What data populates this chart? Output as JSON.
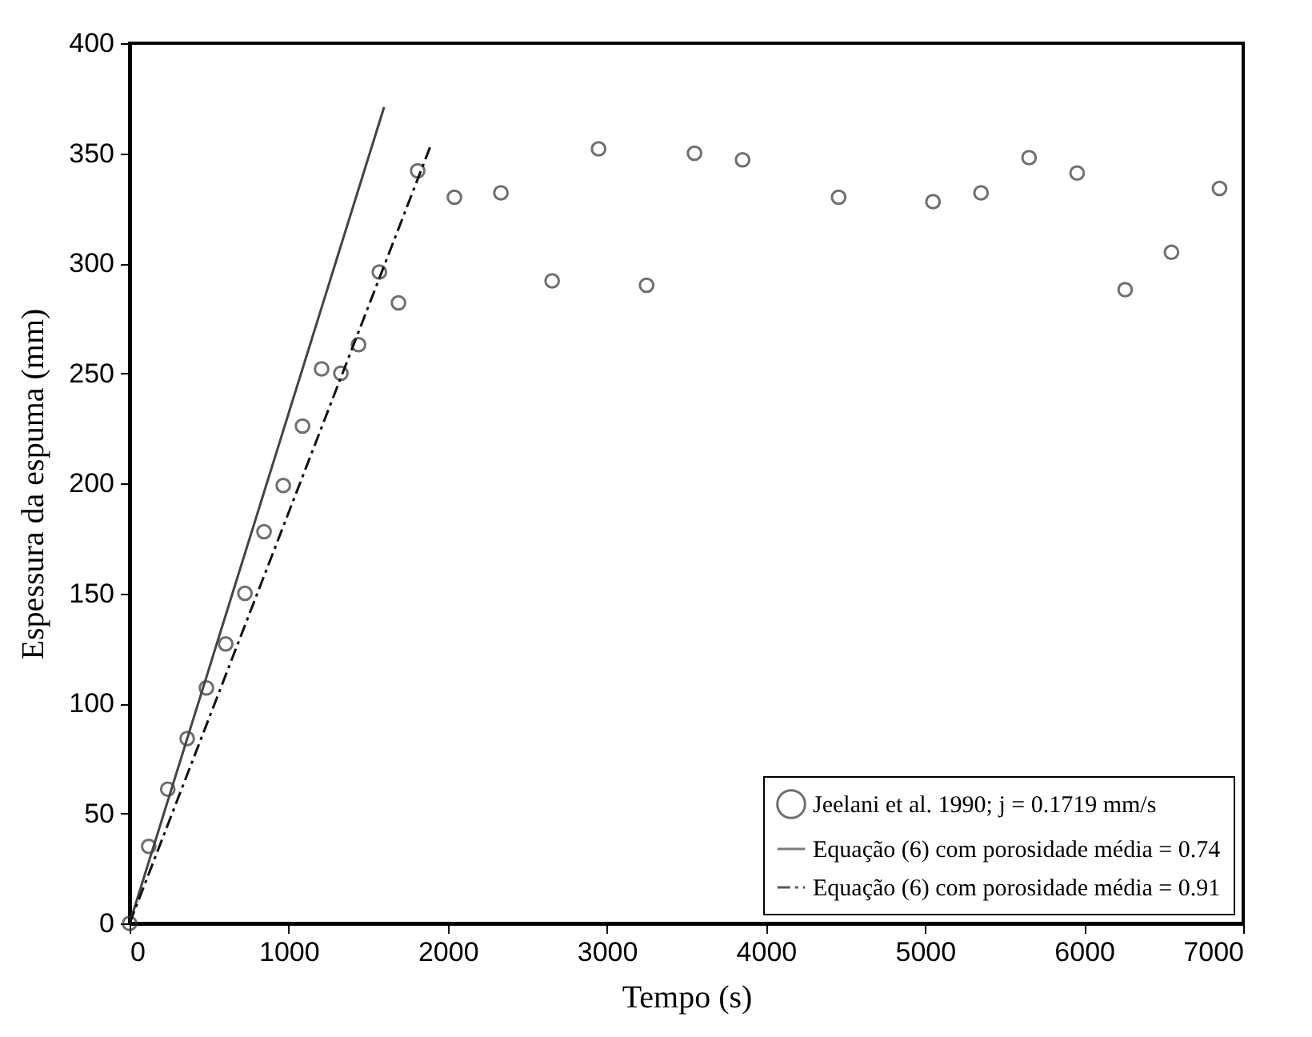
{
  "chart_data": {
    "type": "scatter",
    "xlabel": "Tempo  (s)",
    "ylabel": "Espessura da espuma  (mm)",
    "xlim": [
      0,
      7000
    ],
    "xticks": [
      0,
      {
        "value": 1000,
        "label": "1000"
      },
      {
        "value": 2000,
        "label": "2000"
      },
      {
        "value": 3000,
        "label": "3000"
      },
      {
        "value": 4000,
        "label": "4000"
      },
      {
        "value": 5000,
        "label": "5000"
      },
      {
        "value": 6000,
        "label": "6000"
      },
      {
        "value": 7000,
        "label": "7000"
      }
    ],
    "ylim": [
      0,
      400
    ],
    "yticks": [
      0,
      50,
      100,
      150,
      200,
      250,
      300,
      350,
      400
    ],
    "grid": false,
    "legend": "bottom right",
    "series": [
      {
        "name": "Jeelani et al. 1990; j = 0.1719 mm/s",
        "marker": "circle",
        "color": "#333333",
        "x": [
          0,
          120,
          240,
          362,
          483,
          604,
          725,
          845,
          966,
          1087,
          1207,
          1328,
          1439,
          1570,
          1690,
          1811,
          2042,
          2334,
          2656,
          2948,
          3250,
          3551,
          3853,
          4457,
          5050,
          5352,
          5654,
          5956,
          6258,
          6549,
          6851
        ],
        "values": [
          0,
          35,
          61,
          84,
          107,
          127,
          150,
          178,
          199,
          226,
          252,
          250,
          263,
          296,
          282,
          342,
          330,
          332,
          292,
          352,
          290,
          350,
          347,
          330,
          328,
          332,
          348,
          341,
          288,
          305,
          334
        ]
      },
      {
        "name": "Equação (6) com porosidade média = 0.74",
        "type": "line",
        "line_style": "solid",
        "color": "#444444",
        "x": [
          0,
          1600
        ],
        "values": [
          0,
          371
        ]
      },
      {
        "name": "Equação (6) com porosidade média = 0.91",
        "type": "line",
        "line_style": "dashdot",
        "color": "#111111",
        "x": [
          0,
          1890
        ],
        "values": [
          0,
          353
        ]
      }
    ]
  }
}
